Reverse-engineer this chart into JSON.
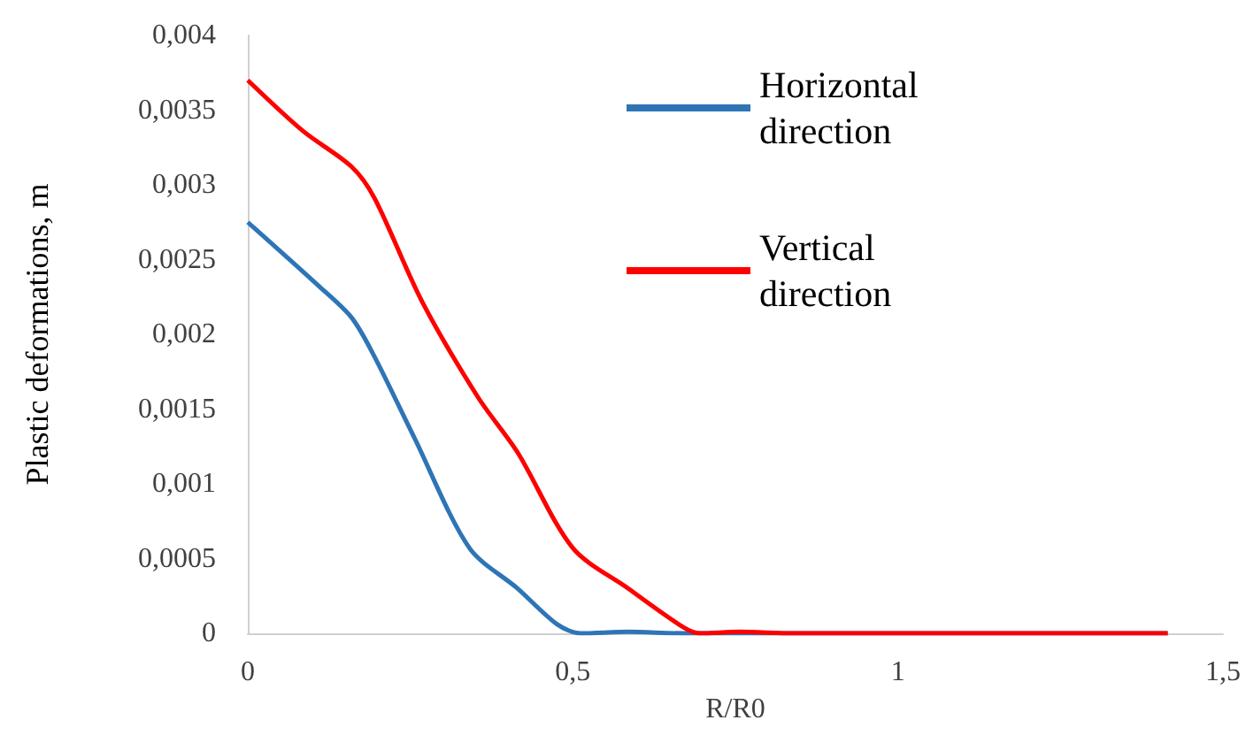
{
  "chart_data": {
    "type": "line",
    "xlabel": "R/R0",
    "ylabel": "Plastic deformations, m",
    "xlim": [
      0,
      1.5
    ],
    "xticks": [
      0,
      {
        "value": 0.5,
        "label": "0,5"
      },
      1,
      {
        "value": 1.5,
        "label": "1,5"
      }
    ],
    "ylim": [
      0,
      0.004
    ],
    "yticks": [
      0,
      {
        "value": 0.0005,
        "label": "0,0005"
      },
      {
        "value": 0.001,
        "label": "0,001"
      },
      {
        "value": 0.0015,
        "label": "0,0015"
      },
      {
        "value": 0.002,
        "label": "0,002"
      },
      {
        "value": 0.0025,
        "label": "0,0025"
      },
      {
        "value": 0.003,
        "label": "0,003"
      },
      {
        "value": 0.0035,
        "label": "0,0035"
      },
      {
        "value": 0.004,
        "label": "0,004"
      }
    ],
    "grid": false,
    "legend": "top right",
    "marker": "none",
    "line_style": "solid",
    "series": [
      {
        "name": "Horizontal direction",
        "color": "#2e75b6",
        "x": [
          0,
          0.11,
          0.16,
          0.195,
          0.256,
          0.341,
          0.415,
          0.476,
          0.512,
          0.585,
          0.67,
          0.84,
          1.1,
          1.415
        ],
        "values": [
          0.00275,
          0.00232,
          0.00211,
          0.00185,
          0.00131,
          0.00057,
          0.0003,
          6e-05,
          0,
          1e-05,
          0,
          0,
          0,
          0
        ]
      },
      {
        "name": "Vertical direction",
        "color": "#ff0000",
        "x": [
          0,
          0.085,
          0.16,
          0.195,
          0.268,
          0.354,
          0.415,
          0.5,
          0.585,
          0.67,
          0.695,
          0.756,
          0.84,
          1.1,
          1.415
        ],
        "values": [
          0.0037,
          0.00336,
          0.00312,
          0.00291,
          0.00222,
          0.00158,
          0.00121,
          0.00057,
          0.0003,
          4e-05,
          0,
          1e-05,
          0,
          0,
          0
        ]
      }
    ]
  }
}
